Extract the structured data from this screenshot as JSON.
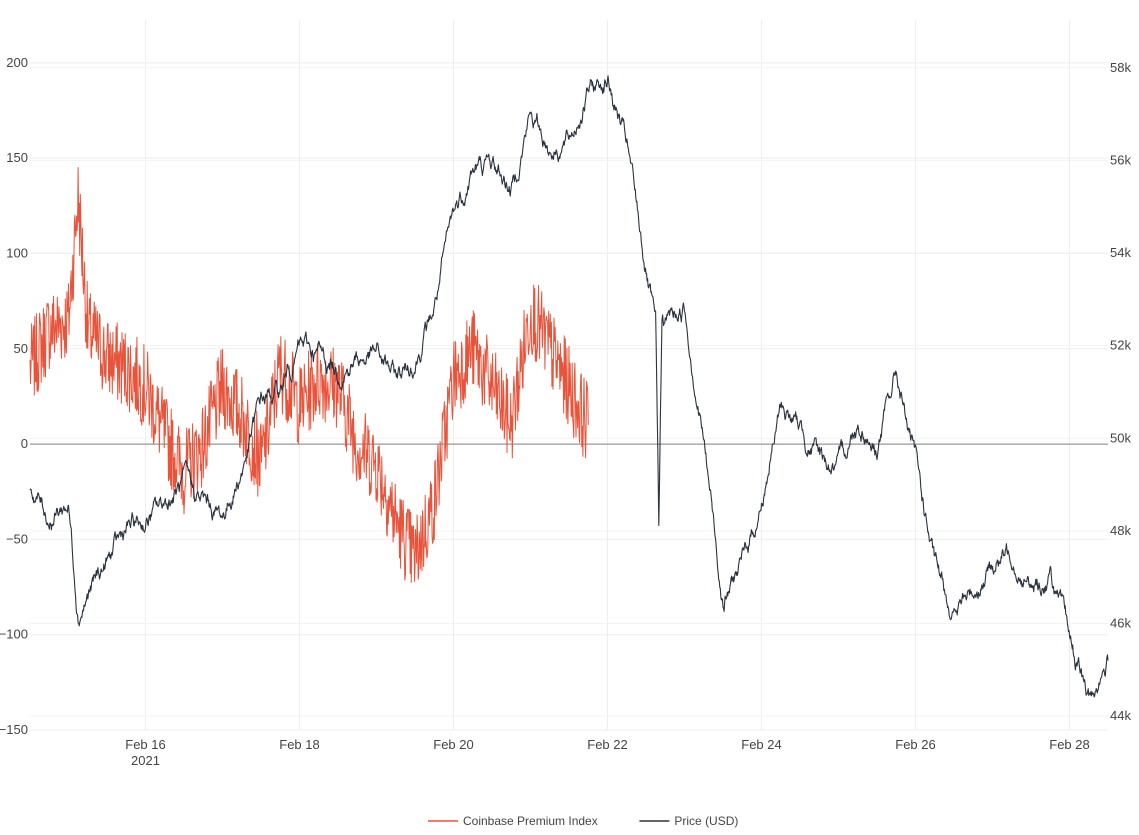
{
  "chart_data": {
    "type": "line",
    "title": "",
    "x_range": [
      "2021-02-14T12:00",
      "2021-02-28T12:00"
    ],
    "x_ticks": [
      {
        "date": "2021-02-16",
        "label": "Feb 16",
        "sublabel": "2021"
      },
      {
        "date": "2021-02-18",
        "label": "Feb 18",
        "sublabel": ""
      },
      {
        "date": "2021-02-20",
        "label": "Feb 20",
        "sublabel": ""
      },
      {
        "date": "2021-02-22",
        "label": "Feb 22",
        "sublabel": ""
      },
      {
        "date": "2021-02-24",
        "label": "Feb 24",
        "sublabel": ""
      },
      {
        "date": "2021-02-26",
        "label": "Feb 26",
        "sublabel": ""
      },
      {
        "date": "2021-02-28",
        "label": "Feb 28",
        "sublabel": ""
      }
    ],
    "y_left": {
      "range": [
        -150,
        212
      ],
      "ticks": [
        {
          "value": 200,
          "label": "200"
        },
        {
          "value": 150,
          "label": "150"
        },
        {
          "value": 100,
          "label": "100"
        },
        {
          "value": 50,
          "label": "50"
        },
        {
          "value": 0,
          "label": "0"
        },
        {
          "value": -50,
          "label": "−50"
        },
        {
          "value": -100,
          "label": "−100"
        },
        {
          "value": -150,
          "label": "−150"
        }
      ],
      "zero_line": true
    },
    "y_right": {
      "range": [
        43700,
        58600
      ],
      "ticks": [
        {
          "value": 58000,
          "label": "58k"
        },
        {
          "value": 56000,
          "label": "56k"
        },
        {
          "value": 54000,
          "label": "54k"
        },
        {
          "value": 52000,
          "label": "52k"
        },
        {
          "value": 50000,
          "label": "50k"
        },
        {
          "value": 48000,
          "label": "48k"
        },
        {
          "value": 46000,
          "label": "46k"
        },
        {
          "value": 44000,
          "label": "44k"
        }
      ]
    },
    "grid": true,
    "legend_position": "bottom-center",
    "series": [
      {
        "name": "Coinbase Premium Index",
        "axis": "left",
        "color": "#e8533a",
        "noise": 22,
        "points": [
          [
            "2021-02-14T12:00",
            40
          ],
          [
            "2021-02-14T18:00",
            60
          ],
          [
            "2021-02-15T00:00",
            65
          ],
          [
            "2021-02-15T03:00",
            130
          ],
          [
            "2021-02-15T06:00",
            60
          ],
          [
            "2021-02-15T12:00",
            45
          ],
          [
            "2021-02-15T18:00",
            40
          ],
          [
            "2021-02-16T00:00",
            30
          ],
          [
            "2021-02-16T06:00",
            5
          ],
          [
            "2021-02-16T12:00",
            -15
          ],
          [
            "2021-02-16T18:00",
            0
          ],
          [
            "2021-02-17T00:00",
            30
          ],
          [
            "2021-02-17T06:00",
            15
          ],
          [
            "2021-02-17T12:00",
            -10
          ],
          [
            "2021-02-17T18:00",
            40
          ],
          [
            "2021-02-18T00:00",
            20
          ],
          [
            "2021-02-18T06:00",
            35
          ],
          [
            "2021-02-18T12:00",
            30
          ],
          [
            "2021-02-18T18:00",
            0
          ],
          [
            "2021-02-19T00:00",
            -10
          ],
          [
            "2021-02-19T06:00",
            -40
          ],
          [
            "2021-02-19T12:00",
            -60
          ],
          [
            "2021-02-19T18:00",
            -30
          ],
          [
            "2021-02-20T00:00",
            35
          ],
          [
            "2021-02-20T06:00",
            50
          ],
          [
            "2021-02-20T12:00",
            30
          ],
          [
            "2021-02-20T18:00",
            10
          ],
          [
            "2021-02-21T00:00",
            70
          ],
          [
            "2021-02-21T06:00",
            50
          ],
          [
            "2021-02-21T12:00",
            30
          ],
          [
            "2021-02-21T18:00",
            10
          ]
        ]
      },
      {
        "name": "Price (USD)",
        "axis": "right",
        "color": "#2a3340",
        "noise": 250,
        "points": [
          [
            "2021-02-14T12:00",
            49000
          ],
          [
            "2021-02-14T18:00",
            48300
          ],
          [
            "2021-02-15T00:00",
            48600
          ],
          [
            "2021-02-15T03:00",
            46300
          ],
          [
            "2021-02-15T12:00",
            47300
          ],
          [
            "2021-02-15T18:00",
            48000
          ],
          [
            "2021-02-16T00:00",
            48200
          ],
          [
            "2021-02-16T12:00",
            49000
          ],
          [
            "2021-02-16T18:00",
            48600
          ],
          [
            "2021-02-17T00:00",
            48300
          ],
          [
            "2021-02-17T06:00",
            49300
          ],
          [
            "2021-02-17T12:00",
            50800
          ],
          [
            "2021-02-17T18:00",
            51000
          ],
          [
            "2021-02-18T00:00",
            52000
          ],
          [
            "2021-02-18T06:00",
            51800
          ],
          [
            "2021-02-18T12:00",
            51500
          ],
          [
            "2021-02-18T18:00",
            51700
          ],
          [
            "2021-02-19T00:00",
            51800
          ],
          [
            "2021-02-19T06:00",
            51300
          ],
          [
            "2021-02-19T12:00",
            51700
          ],
          [
            "2021-02-19T18:00",
            52800
          ],
          [
            "2021-02-20T00:00",
            54800
          ],
          [
            "2021-02-20T06:00",
            55800
          ],
          [
            "2021-02-20T12:00",
            55900
          ],
          [
            "2021-02-20T18:00",
            55400
          ],
          [
            "2021-02-21T00:00",
            57000
          ],
          [
            "2021-02-21T06:00",
            56300
          ],
          [
            "2021-02-21T12:00",
            56400
          ],
          [
            "2021-02-21T18:00",
            57500
          ],
          [
            "2021-02-22T00:00",
            57800
          ],
          [
            "2021-02-22T06:00",
            56300
          ],
          [
            "2021-02-22T09:00",
            55000
          ],
          [
            "2021-02-22T15:00",
            52300
          ],
          [
            "2021-02-22T16:00",
            48000
          ],
          [
            "2021-02-22T17:00",
            52500
          ],
          [
            "2021-02-23T00:00",
            52800
          ],
          [
            "2021-02-23T06:00",
            50000
          ],
          [
            "2021-02-23T12:00",
            46500
          ],
          [
            "2021-02-23T18:00",
            47300
          ],
          [
            "2021-02-24T00:00",
            48600
          ],
          [
            "2021-02-24T06:00",
            50700
          ],
          [
            "2021-02-24T12:00",
            50200
          ],
          [
            "2021-02-24T18:00",
            49600
          ],
          [
            "2021-02-25T00:00",
            49300
          ],
          [
            "2021-02-25T06:00",
            50400
          ],
          [
            "2021-02-25T12:00",
            49800
          ],
          [
            "2021-02-25T18:00",
            51400
          ],
          [
            "2021-02-26T00:00",
            49500
          ],
          [
            "2021-02-26T06:00",
            47200
          ],
          [
            "2021-02-26T12:00",
            46200
          ],
          [
            "2021-02-26T18:00",
            46700
          ],
          [
            "2021-02-27T00:00",
            47300
          ],
          [
            "2021-02-27T06:00",
            47600
          ],
          [
            "2021-02-27T12:00",
            46700
          ],
          [
            "2021-02-27T18:00",
            47000
          ],
          [
            "2021-02-28T00:00",
            45700
          ],
          [
            "2021-02-28T06:00",
            44300
          ],
          [
            "2021-02-28T12:00",
            45200
          ]
        ]
      }
    ]
  }
}
